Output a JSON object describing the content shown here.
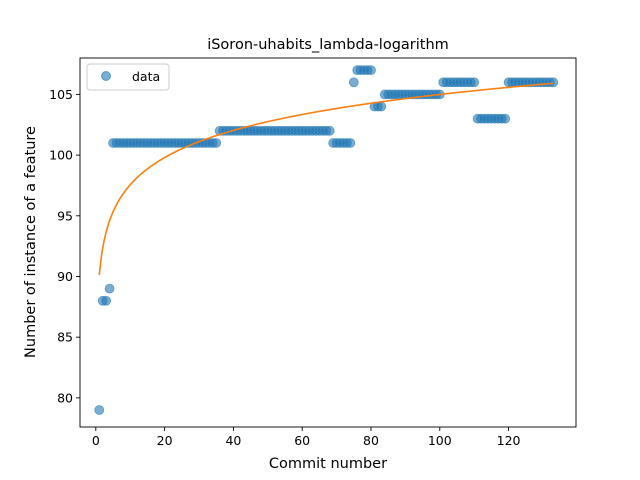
{
  "chart_data": {
    "type": "scatter",
    "title": "iSoron-uhabits_lambda-logarithm",
    "xlabel": "Commit number",
    "ylabel": "Number of instance of a feature",
    "xlim": [
      -4.6,
      139.6
    ],
    "ylim": [
      77.6,
      108.0
    ],
    "xticks": [
      0,
      20,
      40,
      60,
      80,
      100,
      120
    ],
    "yticks": [
      80,
      85,
      90,
      95,
      100,
      105
    ],
    "legend": {
      "placement": "top-left",
      "entries": [
        "data"
      ]
    },
    "colors": {
      "data": "#1f77b4",
      "fit": "#ff7f0e"
    },
    "series": [
      {
        "name": "data",
        "kind": "scatter",
        "x": [
          1,
          2,
          3,
          4,
          5,
          6,
          7,
          8,
          9,
          10,
          11,
          12,
          13,
          14,
          15,
          16,
          17,
          18,
          19,
          20,
          21,
          22,
          23,
          24,
          25,
          26,
          27,
          28,
          29,
          30,
          31,
          32,
          33,
          34,
          35,
          36,
          37,
          38,
          39,
          40,
          41,
          42,
          43,
          44,
          45,
          46,
          47,
          48,
          49,
          50,
          51,
          52,
          53,
          54,
          55,
          56,
          57,
          58,
          59,
          60,
          61,
          62,
          63,
          64,
          65,
          66,
          67,
          68,
          69,
          70,
          71,
          72,
          73,
          74,
          75,
          76,
          77,
          78,
          79,
          80,
          81,
          82,
          83,
          84,
          85,
          86,
          87,
          88,
          89,
          90,
          91,
          92,
          93,
          94,
          95,
          96,
          97,
          98,
          99,
          100,
          101,
          102,
          103,
          104,
          105,
          106,
          107,
          108,
          109,
          110,
          111,
          112,
          113,
          114,
          115,
          116,
          117,
          118,
          119,
          120,
          121,
          122,
          123,
          124,
          125,
          126,
          127,
          128,
          129,
          130,
          131,
          132,
          133
        ],
        "y": [
          79,
          88,
          88,
          89,
          101,
          101,
          101,
          101,
          101,
          101,
          101,
          101,
          101,
          101,
          101,
          101,
          101,
          101,
          101,
          101,
          101,
          101,
          101,
          101,
          101,
          101,
          101,
          101,
          101,
          101,
          101,
          101,
          101,
          101,
          101,
          102,
          102,
          102,
          102,
          102,
          102,
          102,
          102,
          102,
          102,
          102,
          102,
          102,
          102,
          102,
          102,
          102,
          102,
          102,
          102,
          102,
          102,
          102,
          102,
          102,
          102,
          102,
          102,
          102,
          102,
          102,
          102,
          102,
          101,
          101,
          101,
          101,
          101,
          101,
          106,
          107,
          107,
          107,
          107,
          107,
          104,
          104,
          104,
          105,
          105,
          105,
          105,
          105,
          105,
          105,
          105,
          105,
          105,
          105,
          105,
          105,
          105,
          105,
          105,
          105,
          106,
          106,
          106,
          106,
          106,
          106,
          106,
          106,
          106,
          106,
          103,
          103,
          103,
          103,
          103,
          103,
          103,
          103,
          103,
          106,
          106,
          106,
          106,
          106,
          106,
          106,
          106,
          106,
          106,
          106,
          106,
          106,
          106
        ]
      },
      {
        "kind": "line",
        "formula": "y = 90.12 + 3.23 * ln(x)",
        "x_range": [
          1,
          133
        ]
      }
    ]
  }
}
